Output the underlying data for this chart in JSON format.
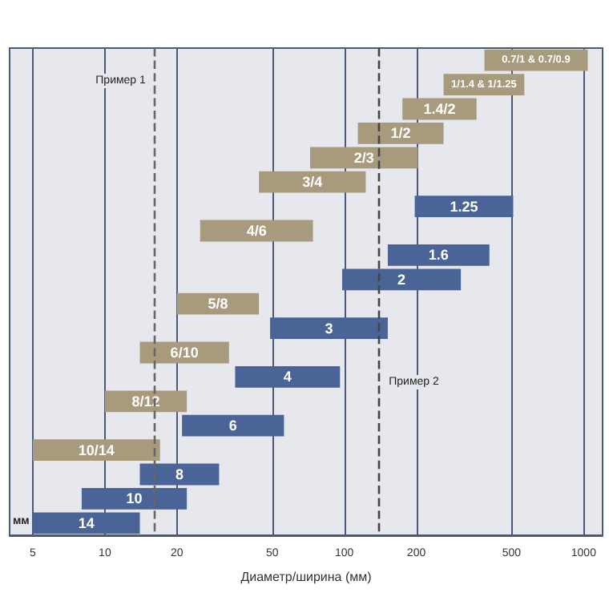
{
  "chart_data": {
    "type": "bar",
    "orientation": "horizontal",
    "xlabel": "Диаметр/ширина (мм)",
    "log": "x",
    "xlim": [
      4,
      1200
    ],
    "xticks": [
      5,
      10,
      20,
      50,
      100,
      200,
      500,
      1000
    ],
    "grid": "x",
    "tick_labels": "x",
    "annotations": [
      "мм"
    ],
    "categories": [
      "0.7/1 & 0.7/0.9",
      "1/1.4 & 1/1.25",
      "1.4/2",
      "1/2",
      "2/3",
      "3/4",
      "1.25",
      "4/6",
      "1.6",
      "2",
      "5/8",
      "3",
      "6/10",
      "4",
      "8/12",
      "6",
      "10/14",
      "8",
      "10",
      "14"
    ],
    "series": [
      {
        "color": "#a89a7c",
        "base": [
          385,
          260,
          175,
          114,
          72,
          44,
          null,
          25,
          null,
          null,
          20,
          null,
          14,
          null,
          10,
          null,
          5,
          null,
          null,
          null
        ],
        "values": [
          655,
          305,
          182,
          146,
          131,
          79,
          null,
          49,
          null,
          null,
          24,
          null,
          19,
          null,
          12,
          null,
          12,
          null,
          null,
          null
        ]
      },
      {
        "color": "#4a6498",
        "base": [
          null,
          null,
          null,
          null,
          null,
          null,
          197,
          null,
          152,
          98,
          null,
          49,
          null,
          35,
          null,
          21,
          null,
          14,
          8,
          5
        ],
        "values": [
          null,
          null,
          null,
          null,
          null,
          null,
          311,
          null,
          252,
          209,
          null,
          103,
          null,
          61,
          null,
          35,
          null,
          16,
          14,
          9
        ]
      }
    ],
    "ref_lines": [
      {
        "axis": "x",
        "value": 16,
        "label": "Пример 1",
        "line_style": "dashed",
        "color": "#666666"
      },
      {
        "axis": "x",
        "value": 140,
        "label": "Пример 2",
        "line_style": "dashed",
        "color": "#444444"
      }
    ]
  }
}
